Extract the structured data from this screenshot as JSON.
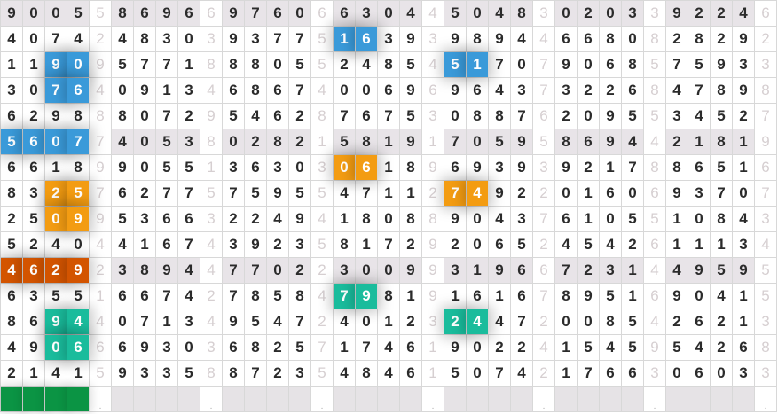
{
  "colors": {
    "blue": "#3a9ad9",
    "orange": "#f39c12",
    "darkorange": "#d35400",
    "teal": "#1abc9c",
    "green": "#0b9444",
    "shade": "#e8e4e8"
  },
  "rows": [
    {
      "groups": [
        "9005",
        "8696",
        "9760",
        "6304",
        "5048",
        "0203",
        "9224"
      ],
      "seps": [
        "5",
        "6",
        "6",
        "4",
        "3",
        "3",
        "6"
      ],
      "shaded": true,
      "highlights": []
    },
    {
      "groups": [
        "4074",
        "4830",
        "9377",
        "1639",
        "9894",
        "6680",
        "2829"
      ],
      "seps": [
        "2",
        "3",
        "5",
        "3",
        "4",
        "8",
        "2"
      ],
      "shaded": false,
      "highlights": [
        {
          "group": 3,
          "start": 0,
          "len": 2,
          "color": "blue"
        }
      ]
    },
    {
      "groups": [
        "1190",
        "5771",
        "8805",
        "2485",
        "5170",
        "9068",
        "7593"
      ],
      "seps": [
        "9",
        "8",
        "5",
        "4",
        "7",
        "5",
        "3"
      ],
      "shaded": false,
      "highlights": [
        {
          "group": 0,
          "start": 2,
          "len": 2,
          "color": "blue"
        },
        {
          "group": 4,
          "start": 0,
          "len": 2,
          "color": "blue"
        }
      ]
    },
    {
      "groups": [
        "3076",
        "0913",
        "6867",
        "0069",
        "9643",
        "3226",
        "4789"
      ],
      "seps": [
        "4",
        "4",
        "4",
        "6",
        "7",
        "8",
        "8"
      ],
      "shaded": false,
      "highlights": [
        {
          "group": 0,
          "start": 2,
          "len": 2,
          "color": "blue"
        }
      ]
    },
    {
      "groups": [
        "6298",
        "8072",
        "5462",
        "7675",
        "0887",
        "2095",
        "3452"
      ],
      "seps": [
        "8",
        "9",
        "8",
        "3",
        "6",
        "5",
        "7"
      ],
      "shaded": false,
      "highlights": []
    },
    {
      "groups": [
        "5607",
        "4053",
        "0282",
        "5819",
        "7059",
        "8694",
        "2181"
      ],
      "seps": [
        "7",
        "8",
        "1",
        "1",
        "5",
        "4",
        "9"
      ],
      "shaded": true,
      "highlights": [
        {
          "group": 0,
          "start": 0,
          "len": 4,
          "color": "blue"
        }
      ]
    },
    {
      "groups": [
        "6618",
        "9055",
        "3630",
        "0618",
        "6939",
        "9217",
        "8651"
      ],
      "seps": [
        "9",
        "1",
        "3",
        "9",
        "3",
        "8",
        "6"
      ],
      "shaded": false,
      "highlights": [
        {
          "group": 3,
          "start": 0,
          "len": 2,
          "color": "orange"
        }
      ]
    },
    {
      "groups": [
        "8325",
        "6277",
        "7595",
        "4711",
        "7492",
        "0160",
        "9370"
      ],
      "seps": [
        "7",
        "5",
        "5",
        "2",
        "2",
        "6",
        "7"
      ],
      "shaded": false,
      "highlights": [
        {
          "group": 0,
          "start": 2,
          "len": 2,
          "color": "orange"
        },
        {
          "group": 4,
          "start": 0,
          "len": 2,
          "color": "orange"
        }
      ]
    },
    {
      "groups": [
        "2509",
        "5366",
        "2249",
        "1808",
        "9043",
        "6105",
        "1084"
      ],
      "seps": [
        "9",
        "3",
        "4",
        "8",
        "7",
        "5",
        "3"
      ],
      "shaded": false,
      "highlights": [
        {
          "group": 0,
          "start": 2,
          "len": 2,
          "color": "orange"
        }
      ]
    },
    {
      "groups": [
        "5240",
        "4167",
        "3923",
        "8172",
        "2065",
        "4542",
        "1113"
      ],
      "seps": [
        "4",
        "4",
        "5",
        "9",
        "2",
        "6",
        "4"
      ],
      "shaded": false,
      "highlights": []
    },
    {
      "groups": [
        "4629",
        "3894",
        "7702",
        "3009",
        "3196",
        "7231",
        "4959"
      ],
      "seps": [
        "2",
        "4",
        "2",
        "9",
        "6",
        "4",
        "5"
      ],
      "shaded": true,
      "highlights": [
        {
          "group": 0,
          "start": 0,
          "len": 4,
          "color": "darkorange"
        }
      ]
    },
    {
      "groups": [
        "6355",
        "6674",
        "7858",
        "7981",
        "1616",
        "8951",
        "9041"
      ],
      "seps": [
        "1",
        "2",
        "4",
        "9",
        "7",
        "6",
        "5"
      ],
      "shaded": false,
      "highlights": [
        {
          "group": 3,
          "start": 0,
          "len": 2,
          "color": "teal"
        }
      ]
    },
    {
      "groups": [
        "8694",
        "0713",
        "9547",
        "4012",
        "2447",
        "0085",
        "2621"
      ],
      "seps": [
        "4",
        "4",
        "2",
        "3",
        "2",
        "4",
        "3"
      ],
      "shaded": false,
      "highlights": [
        {
          "group": 0,
          "start": 2,
          "len": 2,
          "color": "teal"
        },
        {
          "group": 4,
          "start": 0,
          "len": 2,
          "color": "teal"
        }
      ]
    },
    {
      "groups": [
        "4906",
        "6930",
        "6825",
        "1746",
        "9022",
        "1545",
        "5426"
      ],
      "seps": [
        "6",
        "3",
        "7",
        "1",
        "4",
        "9",
        "8"
      ],
      "shaded": false,
      "highlights": [
        {
          "group": 0,
          "start": 2,
          "len": 2,
          "color": "teal"
        }
      ]
    },
    {
      "groups": [
        "2141",
        "9335",
        "8723",
        "4846",
        "5074",
        "1766",
        "0603"
      ],
      "seps": [
        "5",
        "8",
        "5",
        "1",
        "2",
        "3",
        "3"
      ],
      "shaded": false,
      "highlights": []
    }
  ],
  "footer": {
    "seps": [
      ".",
      ".",
      ".",
      ".",
      ".",
      ".",
      "."
    ],
    "progress_group": 0,
    "progress_color": "green"
  }
}
